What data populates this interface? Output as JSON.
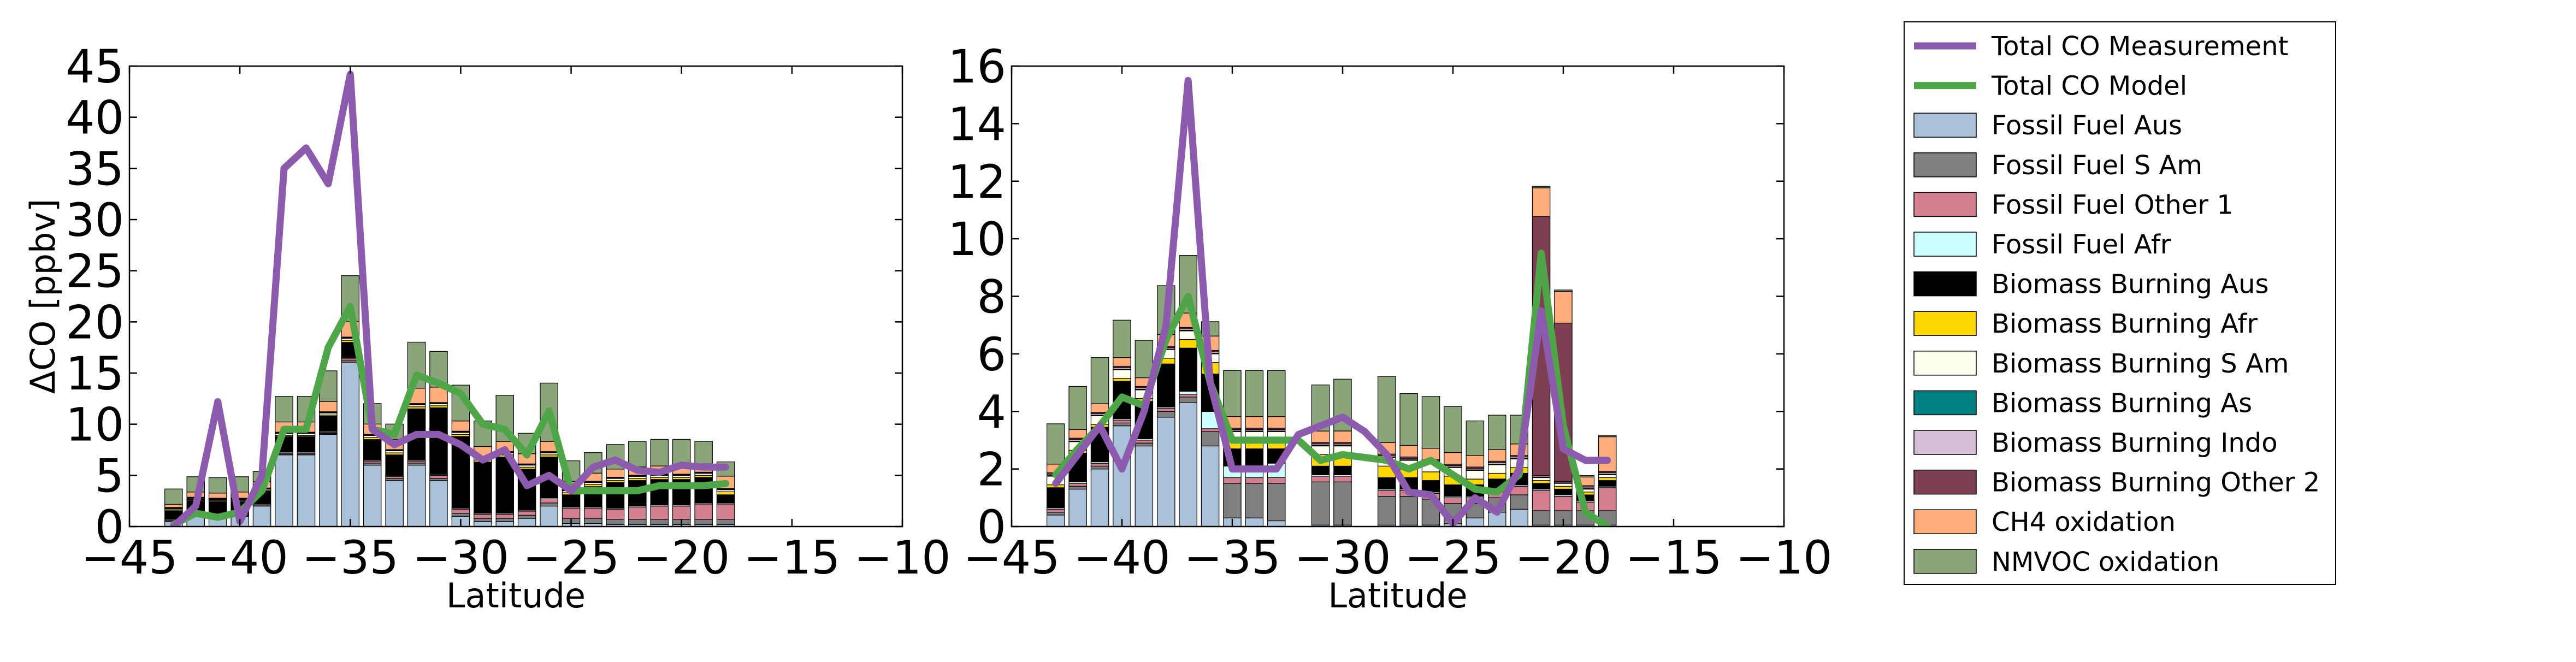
{
  "chart_data": [
    {
      "type": "bar",
      "stacked": true,
      "ylabel": "ΔCO [ppbv]",
      "xlabel": "Latitude",
      "xlim": [
        -45,
        -10
      ],
      "ylim": [
        0,
        45
      ],
      "xticks": [
        -45,
        -40,
        -35,
        -30,
        -25,
        -20,
        -15,
        -10
      ],
      "yticks": [
        0,
        5,
        10,
        15,
        20,
        25,
        30,
        35,
        40,
        45
      ],
      "xtick_labels": [
        "−45",
        "−40",
        "−35",
        "−30",
        "−25",
        "−20",
        "−15",
        "−10"
      ],
      "ytick_labels": [
        "0",
        "5",
        "10",
        "15",
        "20",
        "25",
        "30",
        "35",
        "40",
        "45"
      ],
      "bar_width": 0.8,
      "x": [
        -43,
        -42,
        -41,
        -40,
        -39,
        -38,
        -37,
        -36,
        -35,
        -34,
        -33,
        -32,
        -31,
        -30,
        -29,
        -28,
        -27,
        -26,
        -25,
        -24,
        -23,
        -22,
        -21,
        -20,
        -19,
        -18
      ],
      "stacks": {
        "Fossil Fuel Aus": [
          0.5,
          1,
          1,
          1,
          2,
          7,
          7,
          9,
          16,
          6,
          4.5,
          6,
          4.5,
          1,
          0.5,
          0.5,
          0.8,
          2,
          0.3,
          0.3,
          0.2,
          0.2,
          0.2,
          0.2,
          0.2,
          0.2
        ],
        "Fossil Fuel S Am": [
          0.1,
          0.1,
          0.1,
          0.1,
          0.1,
          0.1,
          0.1,
          0.1,
          0.2,
          0.2,
          0.2,
          0.2,
          0.2,
          0.3,
          0.3,
          0.3,
          0.3,
          0.3,
          0.5,
          0.5,
          0.5,
          0.5,
          0.5,
          0.5,
          0.5,
          0.5
        ],
        "Fossil Fuel Other 1": [
          0.1,
          0.1,
          0.1,
          0.1,
          0.1,
          0.1,
          0.1,
          0.1,
          0.2,
          0.2,
          0.2,
          0.2,
          0.3,
          0.4,
          0.4,
          0.4,
          0.4,
          0.4,
          1,
          1,
          1,
          1.2,
          1.3,
          1.3,
          1.5,
          1.5
        ],
        "Fossil Fuel Afr": [
          0.05,
          0.05,
          0.05,
          0.05,
          0.05,
          0.1,
          0.1,
          0.1,
          0.1,
          0.1,
          0.1,
          0.1,
          0.1,
          0.1,
          0.1,
          0.1,
          0.1,
          0.1,
          0.1,
          0.1,
          0.1,
          0.1,
          0.1,
          0.1,
          0.1,
          0.1
        ],
        "Biomass Burning Aus": [
          0.8,
          1.3,
          1.2,
          1.2,
          1.2,
          1.5,
          1.5,
          1.5,
          1.5,
          2,
          2,
          5,
          6.5,
          7,
          5,
          5.5,
          4,
          4,
          1.2,
          2,
          2.5,
          2.5,
          2.5,
          2.5,
          2.5,
          0.8
        ],
        "Biomass Burning Afr": [
          0.1,
          0.1,
          0.1,
          0.1,
          0.1,
          0.1,
          0.1,
          0.1,
          0.2,
          0.2,
          0.2,
          0.2,
          0.2,
          0.2,
          0.2,
          0.2,
          0.2,
          0.2,
          0.2,
          0.2,
          0.2,
          0.2,
          0.2,
          0.2,
          0.2,
          0.3
        ],
        "Biomass Burning S Am": [
          0.1,
          0.1,
          0.1,
          0.1,
          0.1,
          0.2,
          0.2,
          0.2,
          0.2,
          0.2,
          0.2,
          0.2,
          0.2,
          0.2,
          0.2,
          0.2,
          0.2,
          0.2,
          0.2,
          0.2,
          0.2,
          0.2,
          0.2,
          0.2,
          0.2,
          0.2
        ],
        "Biomass Burning As": [
          0.02,
          0.02,
          0.02,
          0.02,
          0.02,
          0.02,
          0.02,
          0.02,
          0.02,
          0.02,
          0.02,
          0.02,
          0.02,
          0.02,
          0.02,
          0.02,
          0.02,
          0.02,
          0.02,
          0.02,
          0.02,
          0.02,
          0.02,
          0.02,
          0.02,
          0.02
        ],
        "Biomass Burning Indo": [
          0.05,
          0.05,
          0.05,
          0.05,
          0.05,
          0.05,
          0.05,
          0.05,
          0.05,
          0.05,
          0.05,
          0.05,
          0.05,
          0.05,
          0.05,
          0.05,
          0.05,
          0.05,
          0.05,
          0.05,
          0.05,
          0.05,
          0.05,
          0.05,
          0.05,
          0.05
        ],
        "Biomass Burning Other 2": [
          0.05,
          0.05,
          0.05,
          0.05,
          0.05,
          0.05,
          0.05,
          0.05,
          0.05,
          0.05,
          0.05,
          0.05,
          0.05,
          0.05,
          0.05,
          0.05,
          0.05,
          0.05,
          0.05,
          0.05,
          0.05,
          0.05,
          0.05,
          0.05,
          0.05,
          0.05
        ],
        "CH4 oxidation": [
          0.3,
          0.5,
          0.5,
          0.6,
          0.6,
          1,
          1,
          1,
          1.5,
          1,
          1,
          1.5,
          1.5,
          1,
          1,
          1,
          1,
          1,
          0.8,
          0.8,
          0.8,
          0.8,
          0.8,
          0.8,
          0.8,
          1.2
        ],
        "NMVOC oxidation": [
          1.5,
          1.5,
          1.5,
          1.5,
          1,
          2.5,
          2.5,
          3,
          4.5,
          2,
          1.5,
          4.5,
          3.5,
          3.5,
          2.5,
          4.5,
          2,
          5.7,
          2,
          2,
          2.4,
          2.5,
          2.6,
          2.6,
          2.2,
          1.4
        ]
      },
      "lines": {
        "Total CO Measurement": {
          "x": [
            -43,
            -42,
            -41,
            -40,
            -39,
            -38,
            -37,
            -36,
            -35,
            -34,
            -33,
            -32,
            -31,
            -30,
            -29,
            -28,
            -27,
            -26,
            -25,
            -24,
            -23,
            -22,
            -21,
            -20,
            -19,
            -18
          ],
          "y": [
            0,
            2,
            12.2,
            0.5,
            5,
            35,
            37,
            33.5,
            44.2,
            9.5,
            8,
            9,
            9,
            8,
            6.5,
            7.5,
            4,
            5,
            3.5,
            5.8,
            6.5,
            5.5,
            5.3,
            6,
            5.8,
            5.8
          ]
        },
        "Total CO Model": {
          "x": [
            -43,
            -42,
            -41,
            -40,
            -39,
            -38,
            -37,
            -36,
            -35,
            -34,
            -33,
            -32,
            -31,
            -30,
            -29,
            -28,
            -27,
            -26,
            -25,
            -24,
            -23,
            -22,
            -21,
            -20,
            -19,
            -18
          ],
          "y": [
            0.2,
            1.3,
            0.9,
            1.4,
            3.5,
            9.5,
            9.5,
            17.5,
            21.5,
            9.5,
            9,
            14.8,
            14,
            13,
            10,
            9.5,
            7,
            11.3,
            3.5,
            3.5,
            3.5,
            3.5,
            4,
            4,
            4,
            4.2
          ]
        }
      }
    },
    {
      "type": "bar",
      "stacked": true,
      "xlabel": "Latitude",
      "xlim": [
        -45,
        -10
      ],
      "ylim": [
        0,
        16
      ],
      "xticks": [
        -45,
        -40,
        -35,
        -30,
        -25,
        -20,
        -15,
        -10
      ],
      "yticks": [
        0,
        2,
        4,
        6,
        8,
        10,
        12,
        14,
        16
      ],
      "xtick_labels": [
        "−45",
        "−40",
        "−35",
        "−30",
        "−25",
        "−20",
        "−15",
        "−10"
      ],
      "ytick_labels": [
        "0",
        "2",
        "4",
        "6",
        "8",
        "10",
        "12",
        "14",
        "16"
      ],
      "bar_width": 0.8,
      "x": [
        -43,
        -42,
        -41,
        -40,
        -39,
        -38,
        -37,
        -36,
        -35,
        -34,
        -33,
        -31,
        -30,
        -28,
        -27,
        -26,
        -25,
        -24,
        -23,
        -22,
        -21,
        -20,
        -19,
        -18
      ],
      "stacks": {
        "Fossil Fuel Aus": [
          0.4,
          1.3,
          2,
          3.5,
          2.8,
          3.8,
          4.3,
          2.8,
          0.3,
          0.3,
          0.2,
          0.05,
          0.05,
          0.05,
          0.05,
          0.05,
          0.1,
          0.3,
          0.5,
          0.6,
          0.05,
          0.05,
          0.05,
          0.05
        ],
        "Fossil Fuel S Am": [
          0.1,
          0.1,
          0.1,
          0.1,
          0.1,
          0.2,
          0.2,
          0.5,
          1.2,
          1.2,
          1.3,
          1.5,
          1.5,
          1,
          1,
          0.9,
          0.7,
          0.5,
          0.5,
          0.5,
          0.5,
          0.5,
          0.5,
          0.5
        ],
        "Fossil Fuel Other 1": [
          0.1,
          0.1,
          0.1,
          0.1,
          0.1,
          0.1,
          0.1,
          0.1,
          0.2,
          0.2,
          0.2,
          0.2,
          0.2,
          0.2,
          0.2,
          0.2,
          0.2,
          0.2,
          0.2,
          0.3,
          0.7,
          0.5,
          0.3,
          0.8
        ],
        "Fossil Fuel Afr": [
          0.05,
          0.05,
          0.05,
          0.05,
          0.05,
          0.05,
          0.1,
          0.6,
          0.4,
          0.4,
          0.5,
          0.05,
          0.05,
          0.05,
          0.05,
          0.05,
          0.05,
          0.05,
          0.05,
          0.05,
          0.05,
          0.05,
          0.05,
          0.05
        ],
        "Biomass Burning Aus": [
          0.7,
          1,
          1.2,
          1.3,
          1.3,
          1.5,
          1.5,
          1.3,
          0.6,
          0.6,
          0.5,
          0.3,
          0.3,
          0.4,
          0.4,
          0.4,
          0.4,
          0.4,
          0.4,
          0.4,
          0.2,
          0.2,
          0.2,
          0.2
        ],
        "Biomass Burning Afr": [
          0.1,
          0.1,
          0.1,
          0.1,
          0.1,
          0.2,
          0.3,
          0.4,
          0.3,
          0.3,
          0.3,
          0.4,
          0.4,
          0.4,
          0.3,
          0.3,
          0.3,
          0.2,
          0.2,
          0.2,
          0.1,
          0.1,
          0.1,
          0.1
        ],
        "Biomass Burning S Am": [
          0.3,
          0.3,
          0.3,
          0.3,
          0.3,
          0.3,
          0.3,
          0.3,
          0.3,
          0.3,
          0.3,
          0.3,
          0.3,
          0.3,
          0.3,
          0.3,
          0.3,
          0.3,
          0.3,
          0.3,
          0.1,
          0.1,
          0.1,
          0.1
        ],
        "Biomass Burning As": [
          0.02,
          0.02,
          0.02,
          0.02,
          0.02,
          0.02,
          0.02,
          0.02,
          0.02,
          0.02,
          0.02,
          0.02,
          0.02,
          0.02,
          0.02,
          0.02,
          0.02,
          0.02,
          0.02,
          0.02,
          0.02,
          0.02,
          0.02,
          0.02
        ],
        "Biomass Burning Indo": [
          0.05,
          0.05,
          0.05,
          0.05,
          0.05,
          0.05,
          0.05,
          0.05,
          0.05,
          0.05,
          0.05,
          0.05,
          0.05,
          0.05,
          0.05,
          0.05,
          0.05,
          0.05,
          0.05,
          0.05,
          0.05,
          0.05,
          0.05,
          0.05
        ],
        "Biomass Burning Other 2": [
          0.05,
          0.05,
          0.05,
          0.05,
          0.05,
          0.05,
          0.05,
          0.05,
          0.05,
          0.05,
          0.05,
          0.05,
          0.05,
          0.05,
          0.05,
          0.05,
          0.05,
          0.05,
          0.05,
          0.05,
          9,
          5.5,
          0.05,
          0.05
        ],
        "CH4 oxidation": [
          0.3,
          0.3,
          0.3,
          0.3,
          0.3,
          0.4,
          0.5,
          0.5,
          0.4,
          0.4,
          0.4,
          0.4,
          0.4,
          0.4,
          0.4,
          0.4,
          0.4,
          0.4,
          0.4,
          0.4,
          1,
          1.1,
          0.3,
          1.2
        ],
        "NMVOC oxidation": [
          1.4,
          1.5,
          1.6,
          1.3,
          1.3,
          1.7,
          2,
          0.5,
          1.6,
          1.6,
          1.6,
          1.6,
          1.8,
          2.3,
          1.8,
          1.8,
          1.6,
          1.2,
          1.2,
          1,
          0.05,
          0.05,
          0.05,
          0.05
        ]
      },
      "lines": {
        "Total CO Measurement": {
          "x": [
            -43,
            -42,
            -41,
            -40,
            -39,
            -38,
            -37,
            -36,
            -35,
            -34,
            -33,
            -32,
            -31,
            -30,
            -29,
            -28,
            -27,
            -26,
            -25,
            -24,
            -23,
            -22,
            -21,
            -20,
            -19,
            -18
          ],
          "y": [
            1.5,
            2.5,
            3.5,
            2,
            4,
            7,
            15.5,
            5,
            2,
            2,
            2,
            3.2,
            3.5,
            3.8,
            3.3,
            2.5,
            1.2,
            1.1,
            0.1,
            1,
            0.5,
            2,
            7.5,
            2.7,
            2.3,
            2.3
          ]
        },
        "Total CO Model": {
          "x": [
            -43,
            -42,
            -41,
            -40,
            -39,
            -38,
            -37,
            -36,
            -35,
            -34,
            -33,
            -32,
            -31,
            -30,
            -29,
            -28,
            -27,
            -26,
            -25,
            -24,
            -23,
            -22,
            -21,
            -20,
            -19,
            -18
          ],
          "y": [
            1.8,
            2.7,
            3.5,
            4.5,
            4.2,
            6.5,
            8,
            5,
            3,
            3,
            3,
            3,
            2.3,
            2.5,
            2.4,
            2.3,
            2,
            2.3,
            1.8,
            1.3,
            1.2,
            1.8,
            9.5,
            3.5,
            0.5,
            0
          ]
        }
      }
    }
  ],
  "legend": {
    "placement": "right, outside plots",
    "entries": [
      {
        "label": "Total CO Measurement",
        "kind": "line",
        "color": "#8d5bad"
      },
      {
        "label": "Total CO Model",
        "kind": "line",
        "color": "#4ea648"
      },
      {
        "label": "Fossil Fuel Aus",
        "kind": "patch",
        "color": "#a9c1d9"
      },
      {
        "label": "Fossil Fuel S Am",
        "kind": "patch",
        "color": "#7f7f7f"
      },
      {
        "label": "Fossil Fuel Other 1",
        "kind": "patch",
        "color": "#d47f8f"
      },
      {
        "label": "Fossil Fuel Afr",
        "kind": "patch",
        "color": "#ccffff"
      },
      {
        "label": "Biomass Burning Aus",
        "kind": "patch",
        "color": "#000000"
      },
      {
        "label": "Biomass Burning Afr",
        "kind": "patch",
        "color": "#ffd700"
      },
      {
        "label": "Biomass Burning S Am",
        "kind": "patch",
        "color": "#fffff0"
      },
      {
        "label": "Biomass Burning As",
        "kind": "patch",
        "color": "#008080"
      },
      {
        "label": "Biomass Burning Indo",
        "kind": "patch",
        "color": "#d8bfd8"
      },
      {
        "label": "Biomass Burning Other 2",
        "kind": "patch",
        "color": "#7f3f53"
      },
      {
        "label": "CH4 oxidation",
        "kind": "patch",
        "color": "#ffad7a"
      },
      {
        "label": "NMVOC oxidation",
        "kind": "patch",
        "color": "#8aa57a"
      }
    ]
  }
}
